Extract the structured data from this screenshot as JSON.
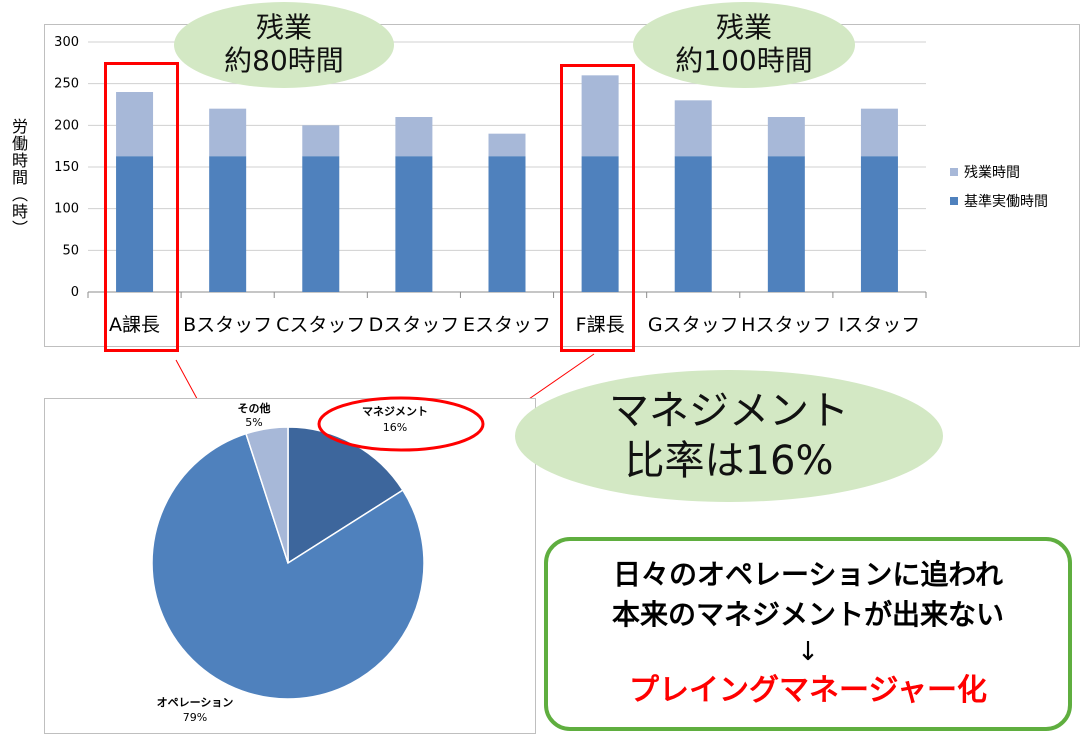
{
  "colors": {
    "base": "#4f81bd",
    "overtime": "#a7b8d8",
    "pie_management": "#3d669c",
    "pie_operation": "#4f81bd",
    "pie_other": "#a7b8d8",
    "highlight": "#ff0000",
    "bubble": "#d3e8c4",
    "summary_border": "#5fae3f"
  },
  "bar_callouts": [
    {
      "line1": "残業",
      "line2": "約80時間"
    },
    {
      "line1": "残業",
      "line2": "約100時間"
    }
  ],
  "pie_callout": {
    "line1": "マネジメント",
    "line2": "比率は16%"
  },
  "summary": {
    "line1": "日々のオペレーションに追われ",
    "line2": "本来のマネジメントが出来ない",
    "arrow": "↓",
    "result": "プレイングマネージャー化"
  },
  "chart_data": [
    {
      "type": "bar",
      "stacked": true,
      "title": "",
      "xlabel": "",
      "ylabel": "労働時間（時）",
      "ylim": [
        0,
        300
      ],
      "yticks": [
        0,
        50,
        100,
        150,
        200,
        250,
        300
      ],
      "grid": true,
      "legend_position": "right",
      "categories": [
        "A課長",
        "Bスタッフ",
        "Cスタッフ",
        "Dスタッフ",
        "Eスタッフ",
        "F課長",
        "Gスタッフ",
        "Hスタッフ",
        "Iスタッフ"
      ],
      "highlighted": [
        "A課長",
        "F課長"
      ],
      "series": [
        {
          "name": "基準実働時間",
          "values": [
            163,
            163,
            163,
            163,
            163,
            163,
            163,
            163,
            163
          ]
        },
        {
          "name": "残業時間",
          "values": [
            77,
            57,
            37,
            47,
            27,
            97,
            67,
            47,
            57
          ]
        }
      ],
      "legend": [
        "残業時間",
        "基準実働時間"
      ]
    },
    {
      "type": "pie",
      "title": "",
      "slices": [
        {
          "label": "マネジメント",
          "value": 16,
          "display": "16%"
        },
        {
          "label": "オペレーション",
          "value": 79,
          "display": "79%"
        },
        {
          "label": "その他",
          "value": 5,
          "display": "5%"
        }
      ],
      "highlighted": [
        "マネジメント"
      ]
    }
  ]
}
